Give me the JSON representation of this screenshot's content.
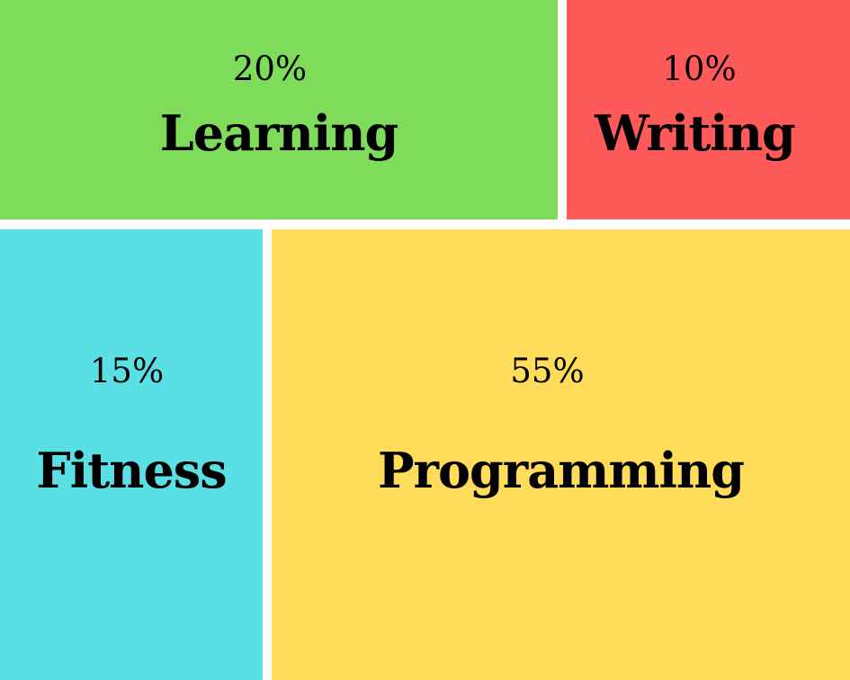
{
  "chart_data": {
    "type": "treemap",
    "title": "",
    "items": [
      {
        "id": "learning",
        "name": "Learning",
        "value": 20,
        "label": "20%",
        "color": "#7fdb5a"
      },
      {
        "id": "writing",
        "name": "Writing",
        "value": 10,
        "label": "10%",
        "color": "#ff5a5a"
      },
      {
        "id": "fitness",
        "name": "Fitness",
        "value": 15,
        "label": "15%",
        "color": "#5ae0e4"
      },
      {
        "id": "programming",
        "name": "Programming",
        "value": 55,
        "label": "55%",
        "color": "#ffdd5a"
      }
    ]
  }
}
